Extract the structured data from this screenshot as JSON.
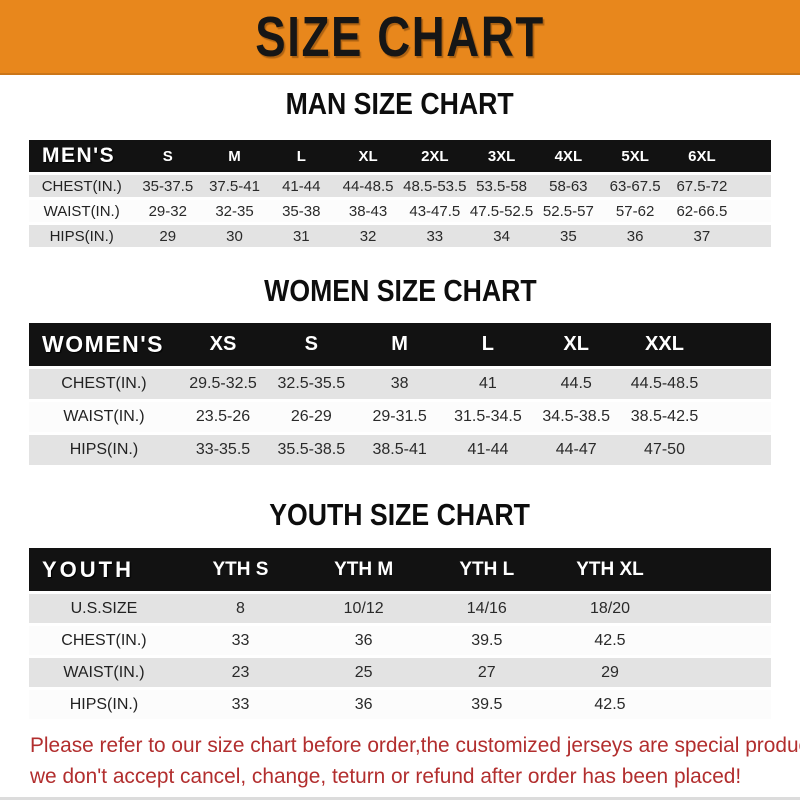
{
  "banner": {
    "title": "SIZE CHART",
    "bg_color": "#E8871C",
    "text_color": "#161616"
  },
  "sections": [
    {
      "key": "men",
      "title": "MAN SIZE CHART",
      "header_label": "MEN'S",
      "columns": [
        "S",
        "M",
        "L",
        "XL",
        "2XL",
        "3XL",
        "4XL",
        "5XL",
        "6XL"
      ],
      "rows": [
        {
          "label": "CHEST(IN.)",
          "values": [
            "35-37.5",
            "37.5-41",
            "41-44",
            "44-48.5",
            "48.5-53.5",
            "53.5-58",
            "58-63",
            "63-67.5",
            "67.5-72"
          ]
        },
        {
          "label": "WAIST(IN.)",
          "values": [
            "29-32",
            "32-35",
            "35-38",
            "38-43",
            "43-47.5",
            "47.5-52.5",
            "52.5-57",
            "57-62",
            "62-66.5"
          ]
        },
        {
          "label": "HIPS(IN.)",
          "values": [
            "29",
            "30",
            "31",
            "32",
            "33",
            "34",
            "35",
            "36",
            "37"
          ]
        }
      ]
    },
    {
      "key": "women",
      "title": "WOMEN SIZE CHART",
      "header_label": "WOMEN'S",
      "columns": [
        "XS",
        "S",
        "M",
        "L",
        "XL",
        "XXL"
      ],
      "rows": [
        {
          "label": "CHEST(IN.)",
          "values": [
            "29.5-32.5",
            "32.5-35.5",
            "38",
            "41",
            "44.5",
            "44.5-48.5"
          ]
        },
        {
          "label": "WAIST(IN.)",
          "values": [
            "23.5-26",
            "26-29",
            "29-31.5",
            "31.5-34.5",
            "34.5-38.5",
            "38.5-42.5"
          ]
        },
        {
          "label": "HIPS(IN.)",
          "values": [
            "33-35.5",
            "35.5-38.5",
            "38.5-41",
            "41-44",
            "44-47",
            "47-50"
          ]
        }
      ]
    },
    {
      "key": "youth",
      "title": "YOUTH SIZE CHART",
      "header_label": "YOUTH",
      "columns": [
        "YTH S",
        "YTH M",
        "YTH L",
        "YTH XL"
      ],
      "rows": [
        {
          "label": "U.S.SIZE",
          "values": [
            "8",
            "10/12",
            "14/16",
            "18/20"
          ]
        },
        {
          "label": "CHEST(IN.)",
          "values": [
            "33",
            "36",
            "39.5",
            "42.5"
          ]
        },
        {
          "label": "WAIST(IN.)",
          "values": [
            "23",
            "25",
            "27",
            "29"
          ]
        },
        {
          "label": "HIPS(IN.)",
          "values": [
            "33",
            "36",
            "39.5",
            "42.5"
          ]
        }
      ]
    }
  ],
  "note": {
    "line1": "Please refer to our size chart before order,the customized jerseys are special products,",
    "line2": "we don't accept cancel, change, teturn or refund after order has been placed!",
    "text_color": "#B22E2E"
  },
  "table_colors": {
    "header_bg": "#121212",
    "header_text": "#FFFFFF",
    "row_gray": "#E3E3E3",
    "row_white": "#FCFCFC"
  }
}
